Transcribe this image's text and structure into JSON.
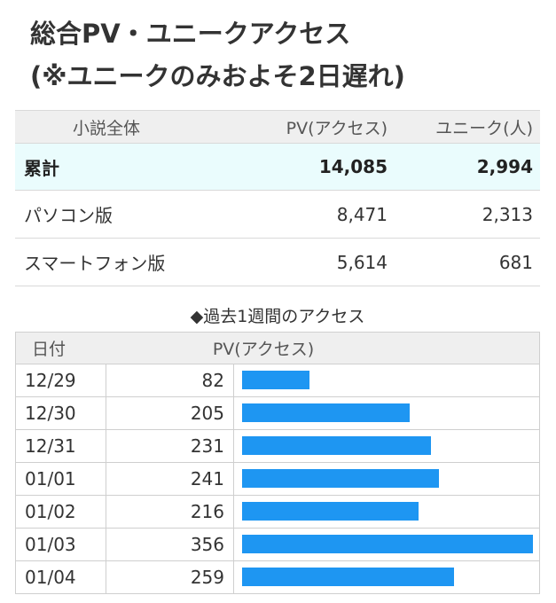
{
  "heading": {
    "line1": "総合PV・ユニークアクセス",
    "line2": "(※ユニークのみおよそ2日遅れ)"
  },
  "summary": {
    "headers": [
      "小説全体",
      "PV(アクセス)",
      "ユニーク(人)"
    ],
    "rows": [
      {
        "label": "累計",
        "pv": "14,085",
        "unique": "2,994"
      },
      {
        "label": "パソコン版",
        "pv": "8,471",
        "unique": "2,313"
      },
      {
        "label": "スマートフォン版",
        "pv": "5,614",
        "unique": "681"
      }
    ]
  },
  "weekly": {
    "title": "◆過去1週間のアクセス",
    "headers": [
      "日付",
      "PV(アクセス)"
    ],
    "bar_color": "#1e96f2",
    "max_value": 356,
    "rows": [
      {
        "date": "12/29",
        "pv": "82",
        "value": 82
      },
      {
        "date": "12/30",
        "pv": "205",
        "value": 205
      },
      {
        "date": "12/31",
        "pv": "231",
        "value": 231
      },
      {
        "date": "01/01",
        "pv": "241",
        "value": 241
      },
      {
        "date": "01/02",
        "pv": "216",
        "value": 216
      },
      {
        "date": "01/03",
        "pv": "356",
        "value": 356
      },
      {
        "date": "01/04",
        "pv": "259",
        "value": 259
      }
    ]
  }
}
